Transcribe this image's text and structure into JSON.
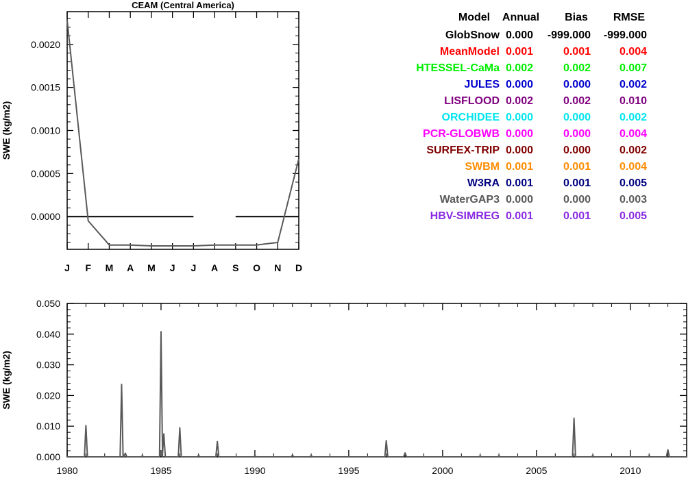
{
  "colors": {
    "axis": "#000000",
    "series_line": "#595959",
    "zero_line": "#000000"
  },
  "chart_data": [
    {
      "type": "line",
      "title": "CEAM (Central America)",
      "xlabel": "",
      "ylabel": "SWE (kg/m2)",
      "categories": [
        "J",
        "F",
        "M",
        "A",
        "M",
        "J",
        "J",
        "A",
        "S",
        "O",
        "N",
        "D"
      ],
      "ylim": [
        -0.00038,
        0.00238
      ],
      "yticks": [
        0.0,
        0.0005,
        0.001,
        0.0015,
        0.002
      ],
      "ytick_labels": [
        "0.0000",
        "0.0005",
        "0.0010",
        "0.0015",
        "0.0020"
      ],
      "grid": false,
      "series": [
        {
          "values": [
            0.00228,
            -5e-05,
            -0.00033,
            -0.00033,
            -0.00034,
            -0.00034,
            -0.00034,
            -0.00033,
            -0.00033,
            -0.00033,
            -0.0003,
            0.00067
          ]
        }
      ],
      "zero_line_segments": [
        [
          0,
          6
        ],
        [
          8,
          11
        ]
      ]
    },
    {
      "type": "line",
      "title": "",
      "xlabel": "",
      "ylabel": "SWE (kg/m2)",
      "xlim": [
        1980,
        2013
      ],
      "ylim": [
        0,
        0.05
      ],
      "xticks": [
        1980,
        1985,
        1990,
        1995,
        2000,
        2005,
        2010
      ],
      "xtick_labels": [
        "1980",
        "1985",
        "1990",
        "1995",
        "2000",
        "2005",
        "2010"
      ],
      "yticks": [
        0,
        0.01,
        0.02,
        0.03,
        0.04,
        0.05
      ],
      "ytick_labels": [
        "0.000",
        "0.010",
        "0.020",
        "0.030",
        "0.040",
        "0.050"
      ],
      "grid": false,
      "series": [
        {
          "peaks": [
            {
              "x": 1981.0,
              "y": 0.0102
            },
            {
              "x": 1982.9,
              "y": 0.0236
            },
            {
              "x": 1983.1,
              "y": 0.0012
            },
            {
              "x": 1984.0,
              "y": 0.0003
            },
            {
              "x": 1985.0,
              "y": 0.0408
            },
            {
              "x": 1985.15,
              "y": 0.0075
            },
            {
              "x": 1986.0,
              "y": 0.0095
            },
            {
              "x": 1987.0,
              "y": 0.0004
            },
            {
              "x": 1988.0,
              "y": 0.005
            },
            {
              "x": 1990.0,
              "y": 0.0003
            },
            {
              "x": 1992.0,
              "y": 0.0005
            },
            {
              "x": 1993.0,
              "y": 0.0004
            },
            {
              "x": 1997.0,
              "y": 0.0053
            },
            {
              "x": 1998.0,
              "y": 0.0013
            },
            {
              "x": 2002.0,
              "y": 0.0003
            },
            {
              "x": 2003.0,
              "y": 0.0003
            },
            {
              "x": 2007.0,
              "y": 0.0126
            },
            {
              "x": 2008.0,
              "y": 0.0004
            },
            {
              "x": 2011.0,
              "y": 0.0003
            },
            {
              "x": 2012.0,
              "y": 0.0023
            }
          ]
        }
      ]
    }
  ],
  "stats_table": {
    "headers": [
      "Model",
      "Annual",
      "Bias",
      "RMSE"
    ],
    "rows": [
      {
        "model": "GlobSnow",
        "annual": "0.000",
        "bias": "-999.000",
        "rmse": "-999.000",
        "color": "#000000"
      },
      {
        "model": "MeanModel",
        "annual": "0.001",
        "bias": "0.001",
        "rmse": "0.004",
        "color": "#ff0000"
      },
      {
        "model": "HTESSEL-CaMa",
        "annual": "0.002",
        "bias": "0.002",
        "rmse": "0.007",
        "color": "#00ee00"
      },
      {
        "model": "JULES",
        "annual": "0.000",
        "bias": "0.000",
        "rmse": "0.002",
        "color": "#0000cd"
      },
      {
        "model": "LISFLOOD",
        "annual": "0.002",
        "bias": "0.002",
        "rmse": "0.010",
        "color": "#800080"
      },
      {
        "model": "ORCHIDEE",
        "annual": "0.000",
        "bias": "0.000",
        "rmse": "0.002",
        "color": "#00e5ee"
      },
      {
        "model": "PCR-GLOBWB",
        "annual": "0.000",
        "bias": "0.000",
        "rmse": "0.004",
        "color": "#ff00ff"
      },
      {
        "model": "SURFEX-TRIP",
        "annual": "0.000",
        "bias": "0.000",
        "rmse": "0.002",
        "color": "#800000"
      },
      {
        "model": "SWBM",
        "annual": "0.001",
        "bias": "0.001",
        "rmse": "0.004",
        "color": "#ff8c00"
      },
      {
        "model": "W3RA",
        "annual": "0.001",
        "bias": "0.001",
        "rmse": "0.005",
        "color": "#000080"
      },
      {
        "model": "WaterGAP3",
        "annual": "0.000",
        "bias": "0.000",
        "rmse": "0.003",
        "color": "#595959"
      },
      {
        "model": "HBV-SIMREG",
        "annual": "0.001",
        "bias": "0.001",
        "rmse": "0.005",
        "color": "#8a2be2"
      }
    ]
  }
}
